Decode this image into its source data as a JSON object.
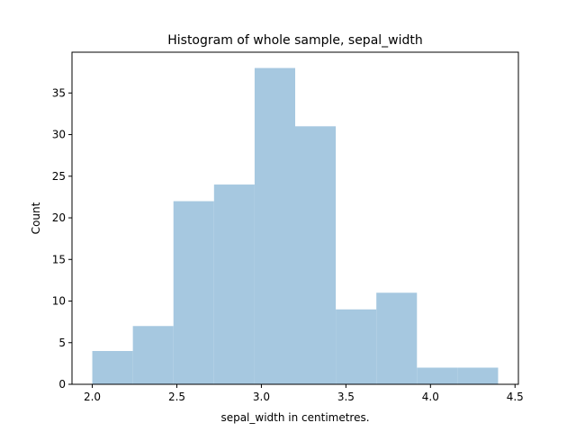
{
  "chart_data": {
    "type": "bar",
    "title": "Histogram of whole sample, sepal_width",
    "xlabel": "sepal_width in centimetres.",
    "ylabel": "Count",
    "bin_edges": [
      2.0,
      2.24,
      2.48,
      2.72,
      2.96,
      3.2,
      3.44,
      3.68,
      3.92,
      4.16,
      4.4
    ],
    "values": [
      4,
      7,
      22,
      24,
      38,
      31,
      9,
      11,
      2,
      2
    ],
    "xlim": [
      1.88,
      4.52
    ],
    "ylim": [
      0,
      39.9
    ],
    "xticks": [
      2.0,
      2.5,
      3.0,
      3.5,
      4.0,
      4.5
    ],
    "xtick_labels": [
      "2.0",
      "2.5",
      "3.0",
      "3.5",
      "4.0",
      "4.5"
    ],
    "yticks": [
      0,
      5,
      10,
      15,
      20,
      25,
      30,
      35
    ],
    "ytick_labels": [
      "0",
      "5",
      "10",
      "15",
      "20",
      "25",
      "30",
      "35"
    ],
    "bar_color": "#a6c8e0",
    "grid": false,
    "legend": "none"
  }
}
